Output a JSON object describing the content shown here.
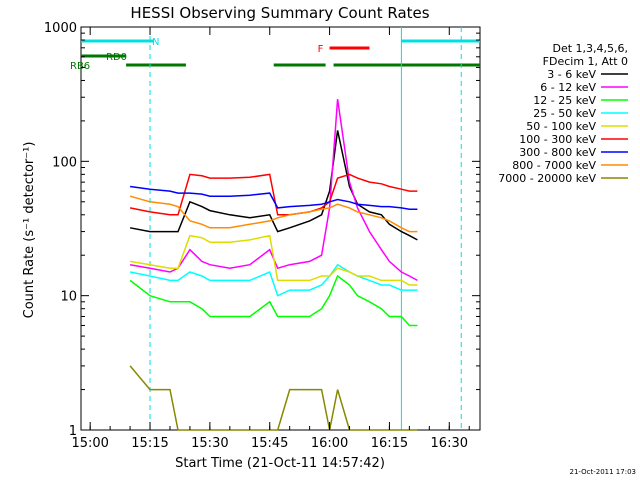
{
  "chart_data": {
    "type": "line",
    "title": "HESSI Observing Summary Count Rates",
    "xlabel": "Start Time (21-Oct-11 14:57:42)",
    "ylabel": "Count Rate (s⁻¹ detector⁻¹)",
    "x_ticks": [
      "15:00",
      "15:15",
      "15:30",
      "15:45",
      "16:00",
      "16:15",
      "16:30"
    ],
    "y_ticks": [
      "1",
      "10",
      "100",
      "1000"
    ],
    "y_scale": "log",
    "ylim": [
      1,
      1000
    ],
    "xlim": [
      "14:57:42",
      "16:37:42"
    ],
    "grid": false,
    "legend_header": [
      "Det 1,3,4,5,6,",
      "FDecim 1, Att 0"
    ],
    "legend_position": "right",
    "footer": "21-Oct-2011 17:03",
    "x_times": [
      "15:10",
      "15:15",
      "15:20",
      "15:22",
      "15:25",
      "15:28",
      "15:30",
      "15:35",
      "15:40",
      "15:45",
      "15:47",
      "15:50",
      "15:55",
      "15:58",
      "16:00",
      "16:02",
      "16:05",
      "16:07",
      "16:10",
      "16:13",
      "16:15",
      "16:18",
      "16:20",
      "16:22"
    ],
    "series": [
      {
        "name": "3 - 6 keV",
        "color": "#000000",
        "values": [
          32,
          30,
          30,
          30,
          50,
          46,
          43,
          40,
          38,
          40,
          30,
          32,
          36,
          40,
          60,
          170,
          65,
          48,
          42,
          40,
          34,
          30,
          28,
          26
        ]
      },
      {
        "name": "6 - 12 keV",
        "color": "#ff00ff",
        "values": [
          17,
          16,
          15,
          16,
          22,
          18,
          17,
          16,
          17,
          22,
          16,
          17,
          18,
          20,
          45,
          290,
          70,
          45,
          30,
          22,
          18,
          15,
          14,
          13
        ]
      },
      {
        "name": "12 - 25 keV",
        "color": "#00ff00",
        "values": [
          13,
          10,
          9,
          9,
          9,
          8,
          7,
          7,
          7,
          9,
          7,
          7,
          7,
          8,
          10,
          14,
          12,
          10,
          9,
          8,
          7,
          7,
          6,
          6
        ]
      },
      {
        "name": "25 - 50 keV",
        "color": "#00ffff",
        "values": [
          15,
          14,
          13,
          13,
          15,
          14,
          13,
          13,
          13,
          15,
          10,
          11,
          11,
          12,
          14,
          17,
          15,
          14,
          13,
          12,
          12,
          11,
          11,
          11
        ]
      },
      {
        "name": "50 - 100 keV",
        "color": "#dddd00",
        "values": [
          18,
          17,
          16,
          16,
          28,
          27,
          25,
          25,
          26,
          28,
          13,
          13,
          13,
          14,
          14,
          16,
          15,
          14,
          14,
          13,
          13,
          13,
          12,
          12
        ]
      },
      {
        "name": "100 - 300 keV",
        "color": "#ff0000",
        "values": [
          45,
          42,
          40,
          40,
          80,
          78,
          75,
          75,
          76,
          80,
          40,
          40,
          42,
          45,
          50,
          75,
          80,
          75,
          70,
          68,
          65,
          62,
          60,
          60
        ]
      },
      {
        "name": "300 - 800 keV",
        "color": "#0000ff",
        "values": [
          65,
          62,
          60,
          58,
          58,
          57,
          55,
          55,
          56,
          58,
          45,
          46,
          47,
          48,
          50,
          52,
          50,
          48,
          47,
          46,
          46,
          45,
          44,
          44
        ]
      },
      {
        "name": "800 - 7000 keV",
        "color": "#ff8c00",
        "values": [
          55,
          50,
          48,
          46,
          36,
          34,
          32,
          32,
          34,
          36,
          38,
          40,
          42,
          44,
          45,
          48,
          45,
          42,
          40,
          38,
          36,
          32,
          30,
          30
        ]
      },
      {
        "name": "7000 - 20000 keV",
        "color": "#888800",
        "values": [
          3,
          2,
          2,
          1,
          1,
          1,
          1,
          1,
          1,
          1,
          1,
          2,
          2,
          2,
          1,
          2,
          1,
          1,
          1,
          1,
          1,
          1,
          1,
          1
        ]
      }
    ],
    "markers": [
      {
        "label": "N",
        "color": "#00e0e0",
        "row": 1,
        "segments": [
          [
            "14:57:42",
            "15:16"
          ],
          [
            "16:18",
            "16:37:42"
          ]
        ]
      },
      {
        "label": "F",
        "color": "#ff0000",
        "row": 2,
        "segments": [
          [
            "16:00",
            "16:10"
          ]
        ]
      },
      {
        "label": "RD0",
        "color": "#007700",
        "row": 3,
        "segments": [
          [
            "14:57:42",
            "15:09"
          ]
        ]
      },
      {
        "label": "RB6",
        "color": "#007700",
        "row": 4,
        "segments": [
          [
            "15:09",
            "15:24"
          ],
          [
            "15:46",
            "15:59"
          ],
          [
            "16:01",
            "16:37:42"
          ]
        ]
      }
    ],
    "vlines": [
      {
        "time": "15:15",
        "color": "#00e0e0",
        "style": "dashed"
      },
      {
        "time": "16:18",
        "color": "#00e0e0",
        "style": "solid"
      },
      {
        "time": "16:33",
        "color": "#00e0e0",
        "style": "dashed"
      }
    ]
  }
}
